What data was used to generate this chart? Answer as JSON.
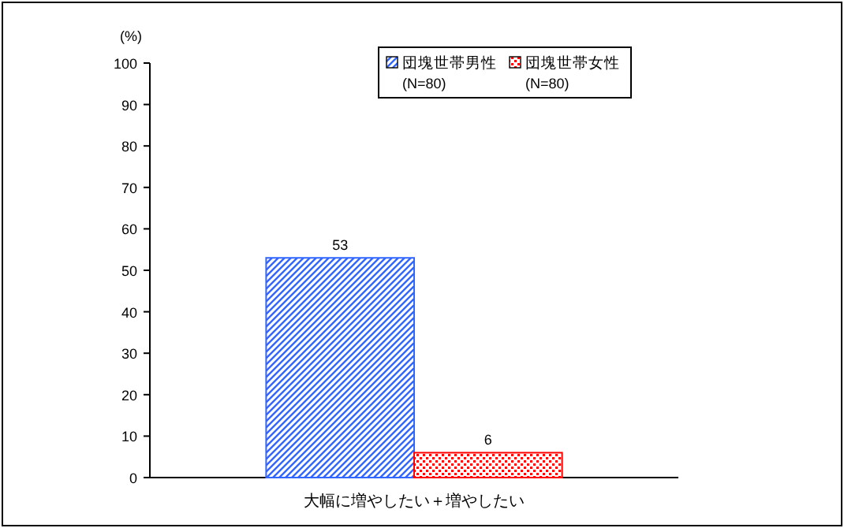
{
  "chart_data": {
    "type": "bar",
    "ylabel": "(%)",
    "categories": [
      "大幅に増やしたい＋増やしたい"
    ],
    "series": [
      {
        "name": "団塊世帯男性 (N=80)",
        "color": "#3366ff",
        "values": [
          53
        ]
      },
      {
        "name": "団塊世帯女性 (N=80)",
        "color": "#ff0000",
        "values": [
          6
        ]
      }
    ],
    "ylim": [
      0,
      100
    ],
    "yticks": [
      0,
      10,
      20,
      30,
      40,
      50,
      60,
      70,
      80,
      90,
      100
    ],
    "grid": false,
    "legend": "top right",
    "data_labels": true
  }
}
